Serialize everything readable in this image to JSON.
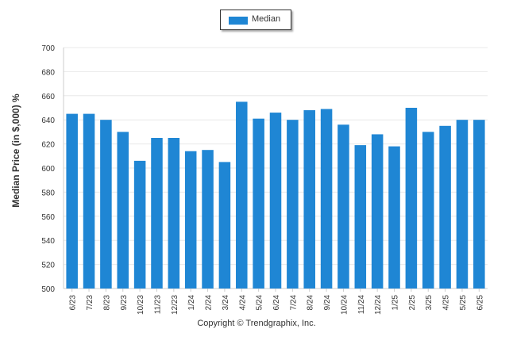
{
  "legend": {
    "label": "Median",
    "color": "#1f86d4"
  },
  "copyright": "Copyright © Trendgraphix, Inc.",
  "chart_data": {
    "type": "bar",
    "ylabel": "Median Price (in $,000) %",
    "xlabel": "",
    "ylim": [
      500,
      700
    ],
    "yticks": [
      500,
      520,
      540,
      560,
      580,
      600,
      620,
      640,
      660,
      680,
      700
    ],
    "grid": true,
    "legend_position": "top-center",
    "categories": [
      "6/23",
      "7/23",
      "8/23",
      "9/23",
      "10/23",
      "11/23",
      "12/23",
      "1/24",
      "2/24",
      "3/24",
      "4/24",
      "5/24",
      "6/24",
      "7/24",
      "8/24",
      "9/24",
      "10/24",
      "11/24",
      "12/24",
      "1/25",
      "2/25",
      "3/25",
      "4/25",
      "5/25",
      "6/25"
    ],
    "series": [
      {
        "name": "Median",
        "color": "#1f86d4",
        "values": [
          645,
          645,
          640,
          630,
          606,
          625,
          625,
          614,
          615,
          605,
          655,
          641,
          646,
          640,
          648,
          649,
          636,
          619,
          628,
          618,
          650,
          630,
          635,
          640,
          640
        ]
      }
    ]
  }
}
